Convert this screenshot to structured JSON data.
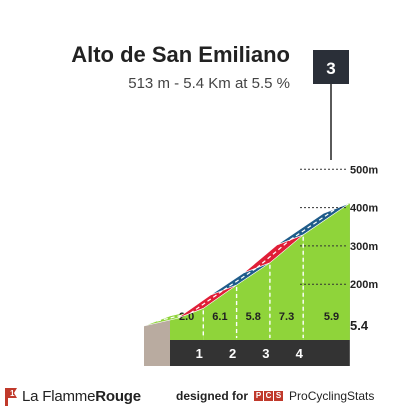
{
  "header": {
    "title": "Alto de San Emiliano",
    "subtitle": "513 m - 5.4 Km at 5.5 %",
    "category": "3"
  },
  "chart_data": {
    "type": "area",
    "title": "Alto de San Emiliano",
    "subtitle": "513 m - 5.4 Km at 5.5 %",
    "altitude_ticks": [
      {
        "value": 200,
        "label": "200m"
      },
      {
        "value": 300,
        "label": "300m"
      },
      {
        "value": 400,
        "label": "400m"
      },
      {
        "value": 500,
        "label": "500m"
      }
    ],
    "segments": [
      {
        "start_km": 0,
        "end_km": 1,
        "gradient": 2.0,
        "label": "2.0",
        "color": "#8fd43a"
      },
      {
        "start_km": 1,
        "end_km": 2,
        "gradient": 6.1,
        "label": "6.1",
        "color": "#e01e37"
      },
      {
        "start_km": 2,
        "end_km": 3,
        "gradient": 5.8,
        "label": "5.8",
        "color": "#1f5c8a"
      },
      {
        "start_km": 3,
        "end_km": 4,
        "gradient": 7.3,
        "label": "7.3",
        "color": "#e01e37"
      },
      {
        "start_km": 4,
        "end_km": 5.4,
        "gradient": 5.9,
        "label": "5.9",
        "color": "#1f5c8a"
      }
    ],
    "km_markers": [
      "1",
      "2",
      "3",
      "4"
    ],
    "total_km": "5.4",
    "category": "3"
  },
  "footer": {
    "brand_name_light": "La Flamme",
    "brand_name_bold": "Rouge",
    "designed_for": "designed for",
    "pcs_letters": [
      "P",
      "C",
      "S"
    ],
    "pcs_name": "ProCyclingStats"
  },
  "colors": {
    "slope_face": "#8fd43a",
    "base_band": "#333333",
    "left_wall": "#b9aba0",
    "brand_red": "#c0392b"
  }
}
